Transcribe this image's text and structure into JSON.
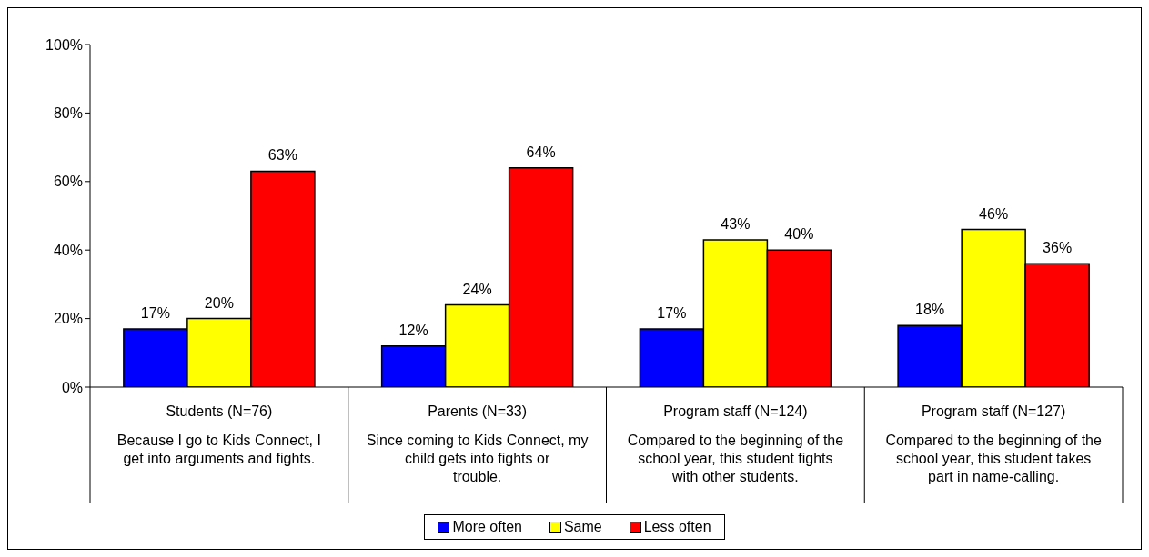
{
  "chart_data": {
    "type": "bar",
    "categories": [
      "Students (N=76)\nBecause I go to Kids Connect, I get into arguments and fights.",
      "Parents (N=33)\nSince coming to Kids Connect, my child gets into fights or trouble.",
      "Program staff (N=124)\nCompared to the beginning of the school year, this student fights with other students.",
      "Program staff (N=127)\nCompared to the beginning of the school year, this student takes part in name-calling."
    ],
    "series": [
      {
        "name": "More often",
        "color": "#0000ff",
        "values": [
          17,
          12,
          17,
          18
        ]
      },
      {
        "name": "Same",
        "color": "#ffff00",
        "values": [
          20,
          24,
          43,
          46
        ]
      },
      {
        "name": "Less often",
        "color": "#ff0000",
        "values": [
          63,
          64,
          40,
          36
        ]
      }
    ],
    "value_labels": [
      [
        "17%",
        "12%",
        "17%",
        "18%"
      ],
      [
        "20%",
        "24%",
        "43%",
        "46%"
      ],
      [
        "63%",
        "64%",
        "40%",
        "36%"
      ]
    ],
    "ylim": [
      0,
      100
    ],
    "yticks": [
      {
        "value": 0,
        "label": "0%"
      },
      {
        "value": 20,
        "label": "20%"
      },
      {
        "value": 40,
        "label": "40%"
      },
      {
        "value": 60,
        "label": "60%"
      },
      {
        "value": 80,
        "label": "80%"
      },
      {
        "value": 100,
        "label": "100%"
      }
    ],
    "grid": false,
    "legend": "bottom"
  }
}
